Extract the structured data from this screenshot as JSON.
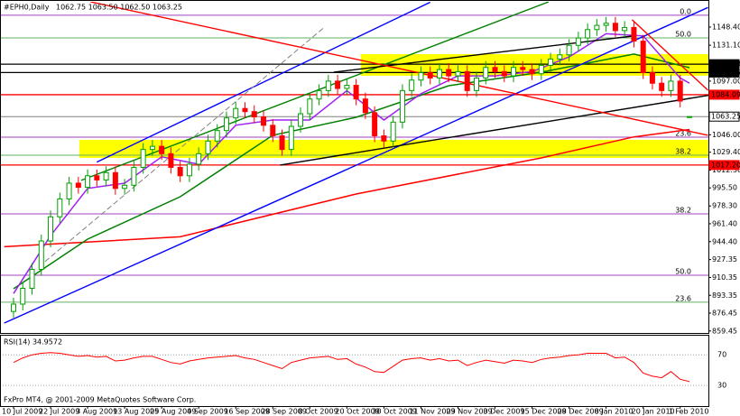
{
  "chart_data": {
    "type": "candlestick",
    "title": "#EPH0,Daily",
    "header_values": {
      "value": "1062.75 1063.50 1062.50 1063.25"
    },
    "copyright": "FxPro MT4, @ 2001-2009 MetaQuotes Software Corp.",
    "categories": [
      "10 Jul 2009",
      null,
      null,
      null,
      "22 Jul 2009",
      null,
      null,
      null,
      "3 Aug 2009",
      null,
      null,
      null,
      "13 Aug 2009",
      null,
      null,
      null,
      "25 Aug 2009",
      null,
      null,
      null,
      "4 Sep 2009",
      null,
      null,
      null,
      "16 Sep 2009",
      null,
      null,
      null,
      "28 Sep 2009",
      null,
      null,
      null,
      "8 Oct 2009",
      null,
      null,
      null,
      "20 Oct 2009",
      null,
      null,
      null,
      "30 Oct 2009",
      null,
      null,
      null,
      "11 Nov 2009",
      null,
      null,
      null,
      "23 Nov 2009",
      null,
      null,
      null,
      "3 Dec 2009",
      null,
      null,
      null,
      "15 Dec 2009",
      null,
      null,
      null,
      "28 Dec 2009",
      null,
      null,
      null,
      "8 Jan 2010",
      null,
      null,
      null,
      "20 Jan 2010",
      null,
      null,
      null,
      "1 Feb 2010",
      null
    ],
    "open": [
      878,
      885,
      900,
      918,
      945,
      968,
      985,
      1000,
      996,
      1007,
      1003,
      1010,
      995,
      998,
      1015,
      1032,
      1035,
      1028,
      1015,
      1007,
      1018,
      1028,
      1040,
      1050,
      1062,
      1071,
      1068,
      1063,
      1055,
      1045,
      1032,
      1054,
      1066,
      1080,
      1088,
      1097,
      1090,
      1093,
      1080,
      1067,
      1045,
      1040,
      1058,
      1088,
      1098,
      1105,
      1100,
      1108,
      1102,
      1106,
      1088,
      1100,
      1110,
      1106,
      1102,
      1110,
      1108,
      1104,
      1112,
      1118,
      1122,
      1131,
      1138,
      1146,
      1150,
      1152,
      1145,
      1148,
      1135,
      1105,
      1095,
      1088,
      1097,
      1062.75
    ],
    "high": [
      891,
      906,
      924,
      951,
      974,
      991,
      1006,
      1006,
      1013,
      1013,
      1016,
      1016,
      1004,
      1021,
      1038,
      1041,
      1041,
      1034,
      1021,
      1024,
      1034,
      1046,
      1056,
      1068,
      1077,
      1077,
      1074,
      1069,
      1061,
      1051,
      1060,
      1072,
      1086,
      1094,
      1103,
      1103,
      1099,
      1099,
      1086,
      1073,
      1051,
      1064,
      1094,
      1104,
      1111,
      1111,
      1114,
      1114,
      1112,
      1112,
      1106,
      1116,
      1116,
      1112,
      1116,
      1116,
      1114,
      1118,
      1124,
      1128,
      1137,
      1144,
      1152,
      1156,
      1158,
      1158,
      1154,
      1154,
      1141,
      1111,
      1101,
      1103,
      1103,
      1063.5
    ],
    "low": [
      872,
      879,
      894,
      912,
      939,
      962,
      979,
      990,
      990,
      997,
      997,
      989,
      989,
      992,
      1009,
      1026,
      1022,
      1009,
      1001,
      1001,
      1012,
      1022,
      1034,
      1044,
      1056,
      1062,
      1057,
      1049,
      1039,
      1026,
      1026,
      1048,
      1060,
      1074,
      1082,
      1084,
      1084,
      1074,
      1061,
      1039,
      1034,
      1034,
      1052,
      1082,
      1092,
      1094,
      1094,
      1096,
      1096,
      1082,
      1082,
      1094,
      1100,
      1096,
      1096,
      1102,
      1098,
      1098,
      1106,
      1112,
      1116,
      1125,
      1132,
      1140,
      1144,
      1139,
      1139,
      1129,
      1099,
      1089,
      1082,
      1082,
      1072,
      1062.5
    ],
    "close": [
      885,
      900,
      918,
      945,
      968,
      985,
      1000,
      996,
      1007,
      1003,
      1010,
      995,
      998,
      1015,
      1032,
      1035,
      1028,
      1015,
      1007,
      1018,
      1028,
      1040,
      1050,
      1062,
      1071,
      1068,
      1063,
      1055,
      1045,
      1032,
      1054,
      1066,
      1080,
      1088,
      1097,
      1090,
      1093,
      1080,
      1067,
      1045,
      1040,
      1058,
      1088,
      1098,
      1105,
      1100,
      1108,
      1102,
      1106,
      1088,
      1100,
      1110,
      1106,
      1102,
      1110,
      1108,
      1104,
      1112,
      1118,
      1122,
      1131,
      1138,
      1146,
      1150,
      1152,
      1145,
      1148,
      1135,
      1105,
      1095,
      1088,
      1097,
      1078,
      1063.25
    ],
    "up_color": "#00a000",
    "down_color": "#ff0000",
    "ylim": [
      858.4,
      1172.4
    ],
    "yticks": [
      {
        "value": 1148.4,
        "label": "1148.40"
      },
      {
        "value": 1131.1,
        "label": "1131.10"
      },
      {
        "value": 1097,
        "label": "1097.00"
      },
      {
        "value": 1046,
        "label": "1046.00"
      },
      {
        "value": 1029.4,
        "label": "1029.40"
      },
      {
        "value": 1012.3,
        "label": "1012.30"
      },
      {
        "value": 995.5,
        "label": "995.50"
      },
      {
        "value": 978.3,
        "label": "978.30"
      },
      {
        "value": 961.4,
        "label": "961.40"
      },
      {
        "value": 944.4,
        "label": "944.40"
      },
      {
        "value": 927.35,
        "label": "927.35"
      },
      {
        "value": 910.35,
        "label": "910.35"
      },
      {
        "value": 893.35,
        "label": "893.35"
      },
      {
        "value": 876.45,
        "label": "876.45"
      },
      {
        "value": 859.45,
        "label": "859.45"
      }
    ],
    "levels": [
      {
        "value": 1113.08,
        "label": "1113.08",
        "color": "#000000"
      },
      {
        "value": 1105.15,
        "label": "1105.15",
        "color": "#000000"
      },
      {
        "value": 1084.09,
        "label": "1084.09",
        "color": "#ff0000"
      },
      {
        "value": 1063.25,
        "label": "1063.25",
        "color": "#808080"
      },
      {
        "value": 1017.2,
        "label": "1017.20",
        "color": "#ff0000"
      }
    ],
    "fib_levels": [
      {
        "value": 1159.6,
        "label": "0.0",
        "color": "#a040c0"
      },
      {
        "value": 1138.1,
        "label": "50.0",
        "color": "#60b060"
      },
      {
        "value": 1043.7,
        "label": "23.6",
        "color": "#a040c0"
      },
      {
        "value": 1026.6,
        "label": "38.2",
        "color": "#60b060"
      },
      {
        "value": 970.8,
        "label": "38.2",
        "color": "#a040c0"
      },
      {
        "value": 912.5,
        "label": "50.0",
        "color": "#a040c0"
      },
      {
        "value": 886.8,
        "label": "23.6",
        "color": "#60b060"
      }
    ],
    "zones": [
      {
        "start": 37.5,
        "top": 1122.7,
        "bottom": 1102.1,
        "color": "#ffff00"
      },
      {
        "start": 7.1,
        "top": 1041.2,
        "bottom": 1024,
        "color": "#ffff00"
      }
    ],
    "trendlines": [
      {
        "color": "#0000ff",
        "points": [
          [
            -1,
            867
          ],
          [
            75,
            1167
          ]
        ]
      },
      {
        "color": "#0000ff",
        "points": [
          [
            9,
            1020
          ],
          [
            45,
            1172
          ]
        ]
      },
      {
        "color": "#008000",
        "points": [
          [
            7.3,
            1002.6
          ],
          [
            57.8,
            1172.4
          ]
        ]
      },
      {
        "color": "#808080",
        "dash": true,
        "points": [
          [
            3.4,
            925.4
          ],
          [
            33.6,
            1148.4
          ]
        ]
      },
      {
        "color": "#000000",
        "points": [
          [
            28.8,
            1017.2
          ],
          [
            75.5,
            1084.1
          ]
        ]
      },
      {
        "color": "#000000",
        "points": [
          [
            34.6,
            1105.5
          ],
          [
            66.8,
            1139.8
          ]
        ]
      },
      {
        "color": "#ff0000",
        "points": [
          [
            8.3,
            1172.4
          ],
          [
            75,
            1045.5
          ]
        ]
      },
      {
        "color": "#ff0000",
        "points": [
          [
            66.8,
            1155.3
          ],
          [
            75,
            1088.3
          ]
        ]
      }
    ],
    "moving_averages": [
      {
        "color": "#ff0000",
        "points": [
          [
            -1,
            939.6
          ],
          [
            18,
            949
          ],
          [
            37,
            989.7
          ],
          [
            57,
            1024
          ],
          [
            67,
            1044
          ],
          [
            73,
            1051
          ]
        ]
      },
      {
        "color": "#008000",
        "points": [
          [
            0,
            899.6
          ],
          [
            8,
            946.8
          ],
          [
            18,
            987.1
          ],
          [
            28,
            1045.5
          ],
          [
            37,
            1062.6
          ],
          [
            47,
            1092.6
          ],
          [
            57,
            1105.5
          ],
          [
            67,
            1122.7
          ],
          [
            73,
            1109.8
          ]
        ]
      },
      {
        "color": "#a020f0",
        "points": [
          [
            0,
            895
          ],
          [
            4,
            950
          ],
          [
            8,
            995
          ],
          [
            12,
            1000
          ],
          [
            16,
            1025
          ],
          [
            20,
            1018
          ],
          [
            24,
            1055
          ],
          [
            28,
            1060
          ],
          [
            32,
            1060
          ],
          [
            36,
            1088
          ],
          [
            40,
            1060
          ],
          [
            44,
            1085
          ],
          [
            48,
            1102
          ],
          [
            52,
            1102
          ],
          [
            56,
            1106
          ],
          [
            60,
            1120
          ],
          [
            64,
            1142
          ],
          [
            68,
            1140
          ],
          [
            72,
            1100
          ],
          [
            73,
            1095
          ]
        ]
      }
    ],
    "rsi": {
      "label": "RSI(14) 34.9572",
      "color": "#ff0000",
      "ylim": [
        3,
        95
      ],
      "yticks": [
        70,
        30
      ],
      "values": [
        60,
        66,
        70,
        72,
        73,
        72,
        70,
        68,
        69,
        67,
        68,
        62,
        63,
        66,
        68,
        68,
        64,
        60,
        58,
        62,
        64,
        66,
        67,
        68,
        69,
        66,
        64,
        60,
        56,
        52,
        60,
        63,
        66,
        67,
        68,
        64,
        65,
        58,
        54,
        48,
        47,
        55,
        63,
        65,
        66,
        63,
        65,
        62,
        63,
        56,
        60,
        63,
        61,
        59,
        63,
        62,
        60,
        64,
        66,
        67,
        69,
        70,
        72,
        72,
        72,
        66,
        67,
        60,
        46,
        42,
        40,
        48,
        38,
        34.9572
      ]
    }
  }
}
